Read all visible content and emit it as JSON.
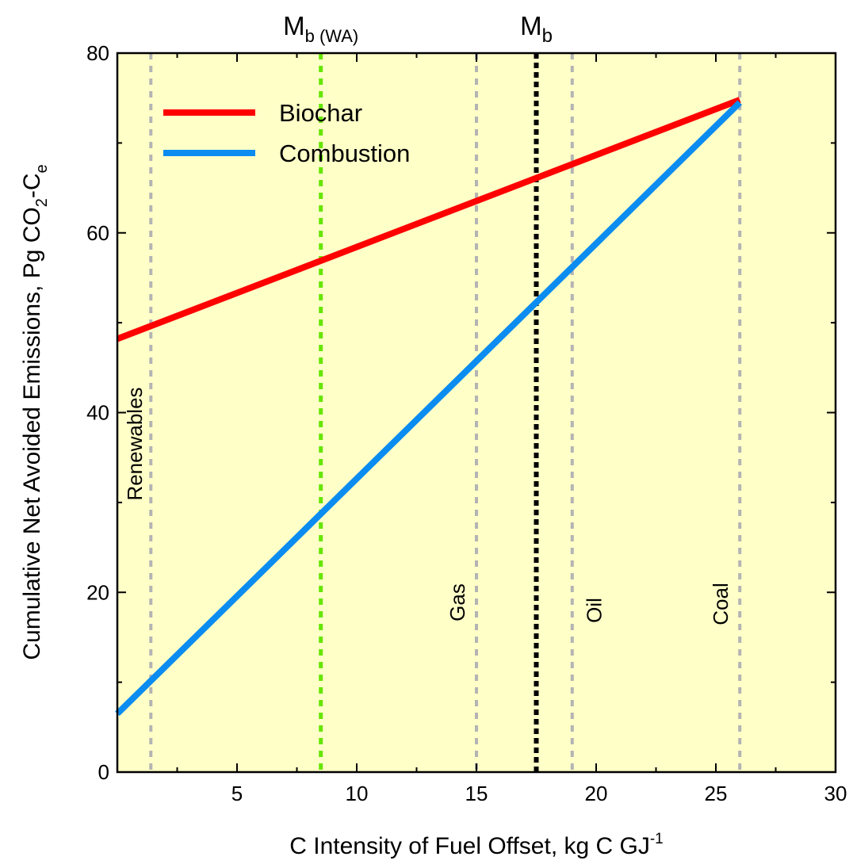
{
  "chart_data": {
    "type": "line",
    "xlabel": "C Intensity of Fuel Offset, kg C GJ",
    "xlabel_sup": "-1",
    "ylabel_main": "Cumulative Net Avoided Emissions, Pg CO",
    "ylabel_sub1": "2",
    "ylabel_mid": "-C",
    "ylabel_sub2": "e",
    "xlim": [
      0,
      30
    ],
    "ylim": [
      0,
      80
    ],
    "xticks": [
      5,
      10,
      15,
      20,
      25,
      30
    ],
    "yticks": [
      0,
      20,
      40,
      60,
      80
    ],
    "background_color": "#ffffc8",
    "series": [
      {
        "name": "Biochar",
        "color": "#ff0000",
        "x": [
          0,
          26
        ],
        "y": [
          48.2,
          74.8
        ]
      },
      {
        "name": "Combustion",
        "color": "#0a8cf0",
        "x": [
          0,
          26
        ],
        "y": [
          6.5,
          74.5
        ]
      }
    ],
    "vertical_lines": [
      {
        "label": "Renewables",
        "x": 1.4,
        "color": "#b4b4b4"
      },
      {
        "label": "Gas",
        "x": 15,
        "color": "#b4b4b4"
      },
      {
        "label": "Oil",
        "x": 19,
        "color": "#b4b4b4"
      },
      {
        "label": "Coal",
        "x": 26,
        "color": "#b4b4b4"
      },
      {
        "label": "",
        "x": 8.5,
        "color": "#66e600"
      },
      {
        "label": "",
        "x": 17.5,
        "color": "#000000"
      }
    ],
    "top_labels": [
      {
        "main": "M",
        "sub": "b (WA)",
        "x": 8.5
      },
      {
        "main": "M",
        "sub": "b",
        "x": 17.5
      }
    ],
    "legend_position": "top-left",
    "grid": false
  }
}
